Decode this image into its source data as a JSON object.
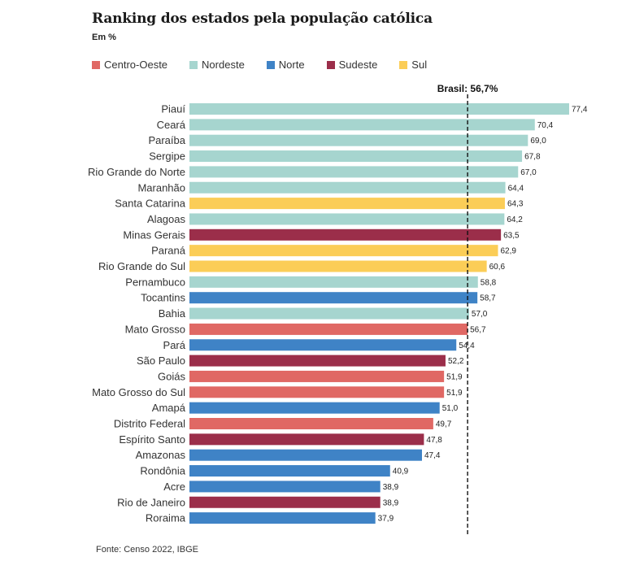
{
  "title": "Ranking dos estados pela população católica",
  "subtitle": "Em %",
  "source": "Fonte: Censo 2022, IBGE",
  "colors": {
    "Centro-Oeste": "#e06864",
    "Nordeste": "#a6d5cf",
    "Norte": "#3f83c6",
    "Sudeste": "#9b2e4a",
    "Sul": "#fbcd57"
  },
  "legend": [
    "Centro-Oeste",
    "Nordeste",
    "Norte",
    "Sudeste",
    "Sul"
  ],
  "chart_data": {
    "type": "bar",
    "orientation": "horizontal",
    "reference_line": {
      "label": "Brasil: 56,7%",
      "value": 56.7,
      "style": "dashed"
    },
    "categories": [
      "Piauí",
      "Ceará",
      "Paraíba",
      "Sergipe",
      "Rio Grande do Norte",
      "Maranhão",
      "Santa Catarina",
      "Alagoas",
      "Minas Gerais",
      "Paraná",
      "Rio Grande do Sul",
      "Pernambuco",
      "Tocantins",
      "Bahia",
      "Mato Grosso",
      "Pará",
      "São Paulo",
      "Goiás",
      "Mato Grosso do Sul",
      "Amapá",
      "Distrito Federal",
      "Espírito Santo",
      "Amazonas",
      "Rondônia",
      "Acre",
      "Rio de Janeiro",
      "Roraima"
    ],
    "values": [
      77.4,
      70.4,
      69.0,
      67.8,
      67.0,
      64.4,
      64.3,
      64.2,
      63.5,
      62.9,
      60.6,
      58.8,
      58.7,
      57.0,
      56.7,
      54.4,
      52.2,
      51.9,
      51.9,
      51.0,
      49.7,
      47.8,
      47.4,
      40.9,
      38.9,
      38.9,
      37.9
    ],
    "value_labels": [
      "77,4",
      "70,4",
      "69,0",
      "67,8",
      "67,0",
      "64,4",
      "64,3",
      "64,2",
      "63,5",
      "62,9",
      "60,6",
      "58,8",
      "58,7",
      "57,0",
      "56,7",
      "54,4",
      "52,2",
      "51,9",
      "51,9",
      "51,0",
      "49,7",
      "47,8",
      "47,4",
      "40,9",
      "38,9",
      "38,9",
      "37,9"
    ],
    "regions": [
      "Nordeste",
      "Nordeste",
      "Nordeste",
      "Nordeste",
      "Nordeste",
      "Nordeste",
      "Sul",
      "Nordeste",
      "Sudeste",
      "Sul",
      "Sul",
      "Nordeste",
      "Norte",
      "Nordeste",
      "Centro-Oeste",
      "Norte",
      "Sudeste",
      "Centro-Oeste",
      "Centro-Oeste",
      "Norte",
      "Centro-Oeste",
      "Sudeste",
      "Norte",
      "Norte",
      "Norte",
      "Sudeste",
      "Norte"
    ],
    "xlim": [
      0,
      77.4
    ],
    "grid": false,
    "legend_position": "top-left"
  }
}
